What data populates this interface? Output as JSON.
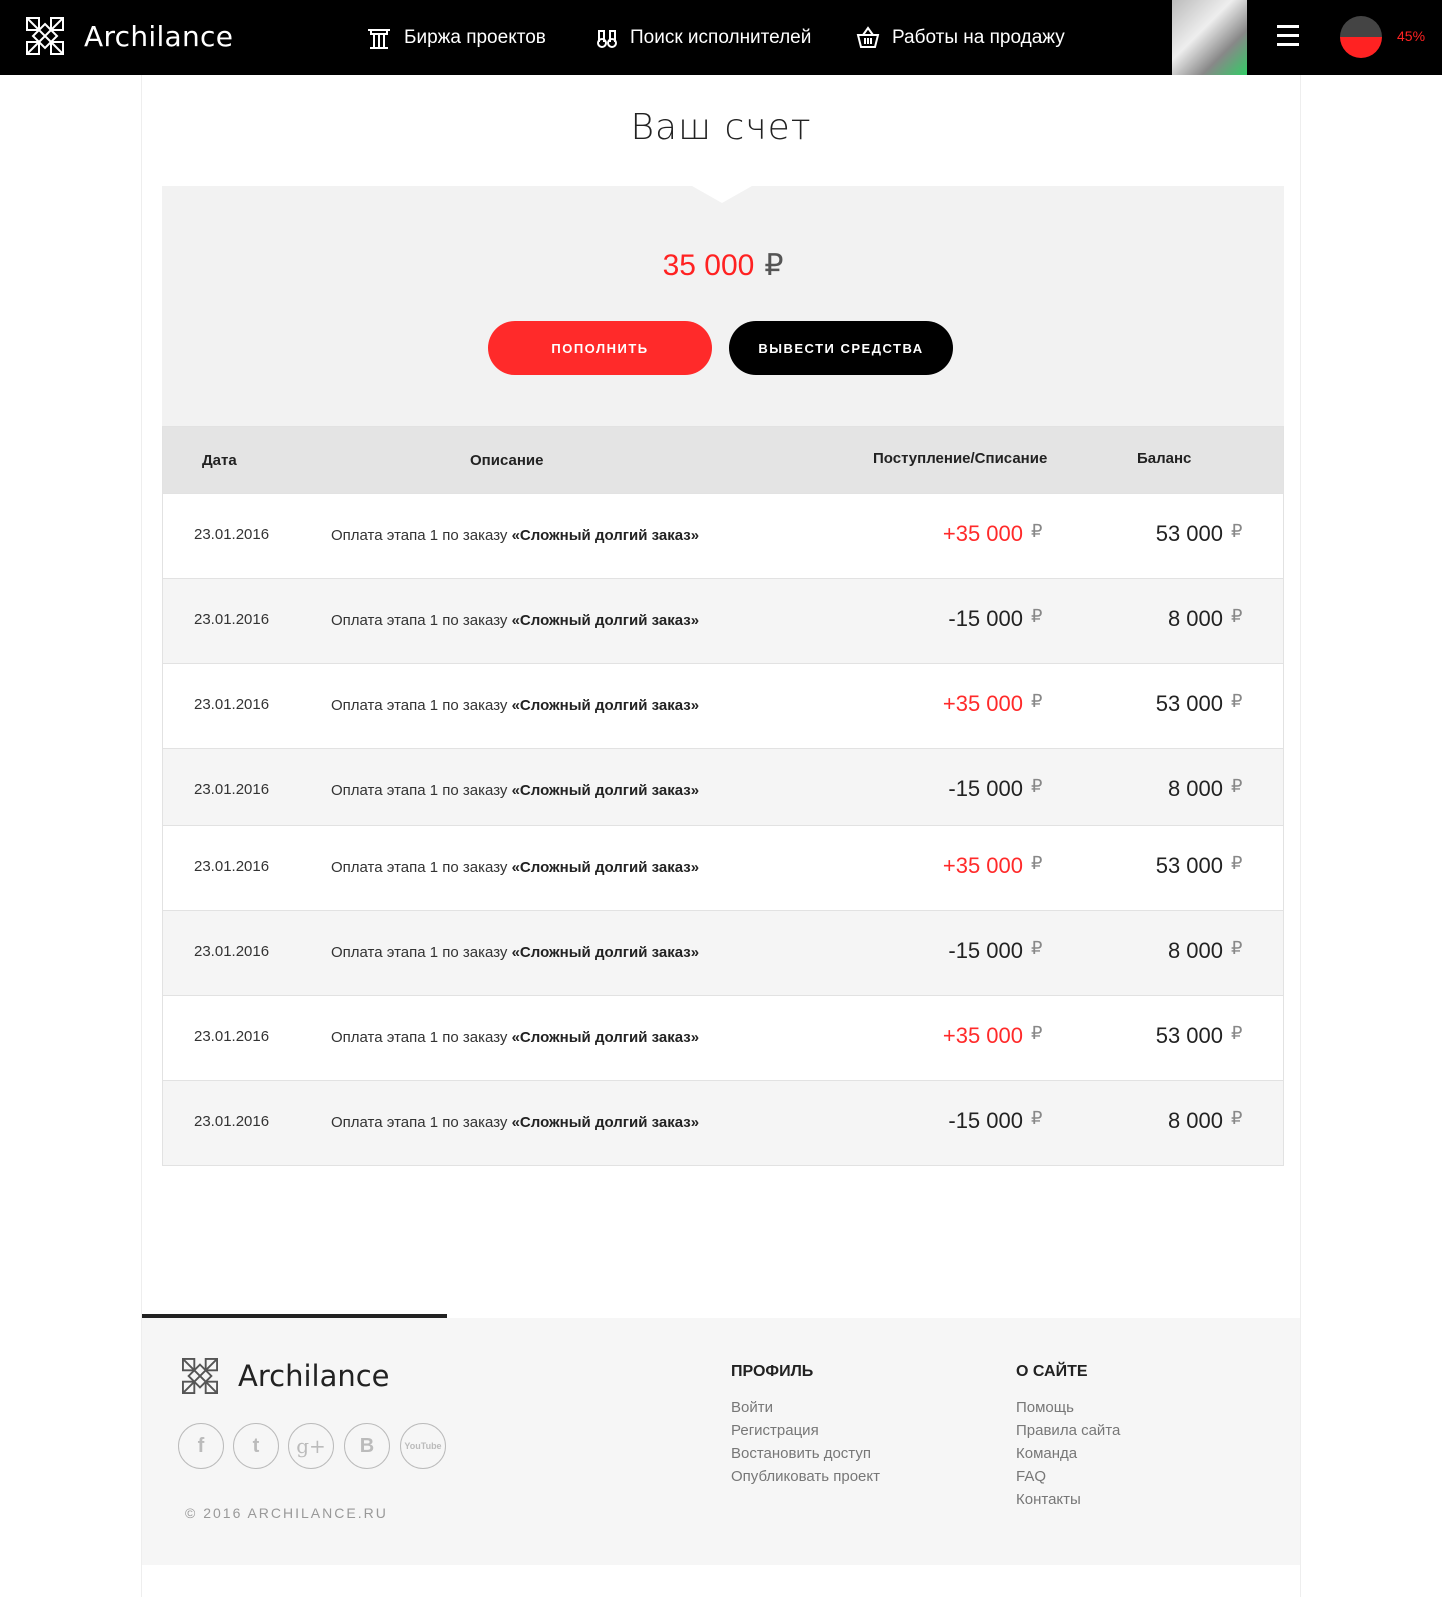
{
  "header": {
    "brand": "Archilance",
    "nav": [
      {
        "label": "Биржа проектов",
        "icon": "column-icon"
      },
      {
        "label": "Поиск исполнителей",
        "icon": "binoculars-icon"
      },
      {
        "label": "Работы на продажу",
        "icon": "basket-icon"
      }
    ],
    "progress": "45%",
    "progress_value": 45
  },
  "main": {
    "title": "Ваш счет",
    "balance": "35 000",
    "currency": "₽",
    "topup_label": "ПОПОЛНИТЬ",
    "withdraw_label": "ВЫВЕСТИ СРЕДСТВА",
    "columns": [
      "Дата",
      "Описание",
      "Поступление/Списание",
      "Баланс"
    ],
    "rows": [
      {
        "date": "23.01.2016",
        "desc": "Оплата этапа 1 по заказу ",
        "order": "«Сложный долгий заказ»",
        "change": "+35 000",
        "balance": "53 000"
      },
      {
        "date": "23.01.2016",
        "desc": "Оплата этапа 1 по заказу ",
        "order": "«Сложный долгий заказ»",
        "change": "-15 000",
        "balance": "8 000"
      },
      {
        "date": "23.01.2016",
        "desc": "Оплата этапа 1 по заказу ",
        "order": "«Сложный долгий заказ»",
        "change": "+35 000",
        "balance": "53 000"
      },
      {
        "date": "23.01.2016",
        "desc": "Оплата этапа 1 по заказу ",
        "order": "«Сложный долгий заказ»",
        "change": "-15 000",
        "balance": "8 000"
      },
      {
        "date": "23.01.2016",
        "desc": "Оплата этапа 1 по заказу ",
        "order": "«Сложный долгий заказ»",
        "change": "+35 000",
        "balance": "53 000"
      },
      {
        "date": "23.01.2016",
        "desc": "Оплата этапа 1 по заказу ",
        "order": "«Сложный долгий заказ»",
        "change": "-15 000",
        "balance": "8 000"
      },
      {
        "date": "23.01.2016",
        "desc": "Оплата этапа 1 по заказу ",
        "order": "«Сложный долгий заказ»",
        "change": "+35 000",
        "balance": "53 000"
      },
      {
        "date": "23.01.2016",
        "desc": "Оплата этапа 1 по заказу ",
        "order": "«Сложный долгий заказ»",
        "change": "-15 000",
        "balance": "8 000"
      }
    ]
  },
  "footer": {
    "brand": "Archilance",
    "social": [
      "f",
      "t",
      "g+",
      "B",
      "YouTube"
    ],
    "copyright": "© 2016 ARCHILANCE.RU",
    "profile": {
      "title": "ПРОФИЛЬ",
      "links": [
        "Войти",
        "Регистрация",
        "Востановить доступ",
        "Опубликовать проект"
      ]
    },
    "about": {
      "title": "О САЙТЕ",
      "links": [
        "Помощь",
        "Правила сайта",
        "Команда",
        "FAQ",
        "Контакты"
      ]
    }
  },
  "colors": {
    "accent": "#ff2a2a",
    "dark": "#000000"
  }
}
